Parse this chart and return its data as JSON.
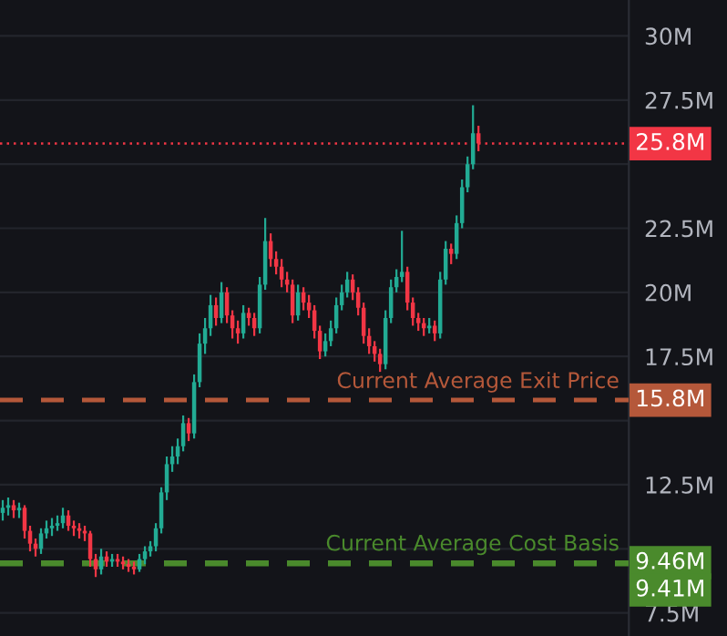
{
  "chart_data": {
    "type": "candlestick",
    "categories": [
      null,
      null,
      null,
      null,
      null,
      null,
      null,
      null,
      null,
      null,
      null,
      null,
      null,
      null,
      null,
      null,
      null,
      null,
      null,
      null,
      null,
      null,
      null,
      null,
      null,
      null,
      null,
      null,
      null,
      null,
      null,
      null,
      null,
      null,
      null,
      null,
      null,
      null,
      null,
      null,
      null,
      null,
      null,
      null,
      null,
      null,
      null,
      null,
      null,
      null,
      null,
      null,
      null,
      null,
      null,
      null,
      null,
      null,
      null,
      null,
      null,
      null,
      null,
      null,
      null,
      null,
      null,
      null,
      null,
      null,
      null,
      null,
      null,
      null,
      null,
      null,
      null,
      null,
      null,
      null,
      null,
      null,
      null,
      null,
      null,
      null,
      null,
      null,
      null,
      null,
      null,
      null,
      null,
      null,
      null,
      null,
      null,
      null,
      null,
      null,
      null,
      null,
      null,
      null,
      null,
      null,
      null,
      null,
      null,
      null,
      null,
      null,
      null,
      null,
      null
    ],
    "ohlc": [
      [
        11.4,
        11.9,
        11.1,
        11.6
      ],
      [
        11.6,
        12.0,
        11.3,
        11.7
      ],
      [
        11.7,
        11.9,
        11.2,
        11.5
      ],
      [
        11.5,
        11.8,
        11.2,
        11.6
      ],
      [
        11.6,
        11.7,
        10.4,
        10.7
      ],
      [
        10.7,
        10.9,
        9.9,
        10.2
      ],
      [
        10.2,
        10.4,
        9.7,
        10.0
      ],
      [
        10.0,
        10.8,
        9.8,
        10.6
      ],
      [
        10.6,
        11.1,
        10.4,
        10.8
      ],
      [
        10.8,
        11.2,
        10.5,
        10.9
      ],
      [
        10.9,
        11.3,
        10.7,
        11.0
      ],
      [
        11.0,
        11.6,
        10.8,
        11.3
      ],
      [
        11.3,
        11.5,
        10.7,
        10.9
      ],
      [
        10.9,
        11.1,
        10.5,
        10.8
      ],
      [
        10.8,
        11.0,
        10.4,
        10.7
      ],
      [
        10.7,
        10.9,
        10.3,
        10.6
      ],
      [
        10.6,
        10.7,
        9.3,
        9.6
      ],
      [
        9.6,
        9.8,
        8.9,
        9.2
      ],
      [
        9.2,
        10.0,
        9.0,
        9.7
      ],
      [
        9.7,
        9.9,
        9.3,
        9.5
      ],
      [
        9.5,
        9.8,
        9.3,
        9.6
      ],
      [
        9.6,
        9.8,
        9.3,
        9.5
      ],
      [
        9.5,
        9.7,
        9.2,
        9.4
      ],
      [
        9.4,
        9.6,
        9.1,
        9.3
      ],
      [
        9.3,
        9.5,
        9.0,
        9.2
      ],
      [
        9.2,
        9.8,
        9.1,
        9.6
      ],
      [
        9.6,
        10.1,
        9.4,
        9.9
      ],
      [
        9.9,
        10.3,
        9.7,
        10.1
      ],
      [
        10.1,
        11.0,
        9.9,
        10.8
      ],
      [
        10.8,
        12.4,
        10.6,
        12.2
      ],
      [
        12.2,
        13.6,
        11.9,
        13.3
      ],
      [
        13.3,
        14.0,
        13.0,
        13.6
      ],
      [
        13.6,
        14.3,
        13.3,
        14.0
      ],
      [
        14.0,
        15.2,
        13.8,
        14.9
      ],
      [
        14.9,
        15.1,
        14.2,
        14.5
      ],
      [
        14.5,
        16.8,
        14.3,
        16.5
      ],
      [
        16.5,
        18.4,
        16.3,
        18.0
      ],
      [
        18.0,
        19.0,
        17.6,
        18.6
      ],
      [
        18.6,
        19.9,
        18.3,
        19.5
      ],
      [
        19.5,
        19.8,
        18.7,
        19.0
      ],
      [
        19.0,
        20.4,
        18.8,
        20.0
      ],
      [
        20.0,
        20.2,
        18.8,
        19.1
      ],
      [
        19.1,
        19.3,
        18.2,
        18.6
      ],
      [
        18.6,
        18.9,
        18.0,
        18.4
      ],
      [
        18.4,
        19.5,
        18.2,
        19.2
      ],
      [
        19.2,
        19.4,
        18.7,
        19.0
      ],
      [
        19.0,
        19.2,
        18.3,
        18.6
      ],
      [
        18.6,
        20.6,
        18.4,
        20.3
      ],
      [
        20.3,
        22.9,
        20.1,
        22.0
      ],
      [
        22.0,
        22.3,
        21.0,
        21.3
      ],
      [
        21.3,
        21.6,
        20.7,
        21.0
      ],
      [
        21.0,
        21.3,
        20.2,
        20.5
      ],
      [
        20.5,
        20.8,
        20.0,
        20.3
      ],
      [
        20.3,
        20.5,
        18.8,
        19.1
      ],
      [
        19.1,
        20.3,
        18.9,
        20.0
      ],
      [
        20.0,
        20.2,
        19.3,
        19.6
      ],
      [
        19.6,
        19.9,
        19.0,
        19.3
      ],
      [
        19.3,
        19.5,
        18.2,
        18.5
      ],
      [
        18.5,
        18.7,
        17.4,
        17.7
      ],
      [
        17.7,
        18.4,
        17.5,
        18.1
      ],
      [
        18.1,
        18.9,
        17.9,
        18.6
      ],
      [
        18.6,
        19.8,
        18.4,
        19.5
      ],
      [
        19.5,
        20.3,
        19.3,
        20.0
      ],
      [
        20.0,
        20.8,
        19.8,
        20.5
      ],
      [
        20.5,
        20.7,
        19.7,
        20.0
      ],
      [
        20.0,
        20.2,
        19.1,
        19.4
      ],
      [
        19.4,
        19.6,
        18.0,
        18.3
      ],
      [
        18.3,
        18.6,
        17.6,
        17.9
      ],
      [
        17.9,
        18.1,
        17.3,
        17.6
      ],
      [
        17.6,
        17.8,
        16.9,
        17.2
      ],
      [
        17.2,
        19.3,
        17.0,
        19.0
      ],
      [
        19.0,
        20.5,
        18.8,
        20.2
      ],
      [
        20.2,
        20.9,
        20.0,
        20.6
      ],
      [
        20.6,
        22.4,
        20.4,
        20.8
      ],
      [
        20.8,
        21.0,
        19.3,
        19.6
      ],
      [
        19.6,
        19.8,
        18.7,
        19.0
      ],
      [
        19.0,
        19.2,
        18.5,
        18.8
      ],
      [
        18.8,
        19.0,
        18.3,
        18.6
      ],
      [
        18.6,
        19.0,
        18.4,
        18.7
      ],
      [
        18.7,
        18.9,
        18.1,
        18.4
      ],
      [
        18.4,
        20.8,
        18.2,
        20.5
      ],
      [
        20.5,
        22.0,
        20.3,
        21.7
      ],
      [
        21.7,
        21.9,
        21.1,
        21.5
      ],
      [
        21.5,
        23.0,
        21.3,
        22.7
      ],
      [
        22.7,
        24.4,
        22.5,
        24.1
      ],
      [
        24.1,
        25.3,
        23.9,
        25.0
      ],
      [
        25.0,
        27.3,
        24.8,
        26.2
      ],
      [
        26.2,
        26.5,
        25.5,
        25.8
      ],
      null,
      null,
      null,
      null,
      null,
      null,
      null,
      null,
      null,
      null,
      null,
      null,
      null,
      null,
      null,
      null,
      null,
      null,
      null,
      null,
      null,
      null,
      null,
      null,
      null,
      null,
      null
    ],
    "colors": [
      "#22ab94",
      "#22ab94",
      "#f23645",
      "#22ab94",
      "#f23645",
      "#f23645",
      "#f23645",
      "#22ab94",
      "#22ab94",
      "#22ab94",
      "#22ab94",
      "#22ab94",
      "#f23645",
      "#f23645",
      "#f23645",
      "#f23645",
      "#f23645",
      "#f23645",
      "#22ab94",
      "#f23645",
      "#22ab94",
      "#f23645",
      "#f23645",
      "#f23645",
      "#f23645",
      "#22ab94",
      "#22ab94",
      "#22ab94",
      "#22ab94",
      "#22ab94",
      "#22ab94",
      "#22ab94",
      "#22ab94",
      "#22ab94",
      "#f23645",
      "#22ab94",
      "#22ab94",
      "#22ab94",
      "#22ab94",
      "#f23645",
      "#22ab94",
      "#f23645",
      "#f23645",
      "#f23645",
      "#22ab94",
      "#f23645",
      "#f23645",
      "#22ab94",
      "#22ab94",
      "#f23645",
      "#f23645",
      "#f23645",
      "#f23645",
      "#f23645",
      "#22ab94",
      "#f23645",
      "#f23645",
      "#f23645",
      "#f23645",
      "#22ab94",
      "#22ab94",
      "#22ab94",
      "#22ab94",
      "#22ab94",
      "#f23645",
      "#f23645",
      "#f23645",
      "#f23645",
      "#f23645",
      "#f23645",
      "#22ab94",
      "#22ab94",
      "#22ab94",
      "#22ab94",
      "#f23645",
      "#f23645",
      "#f23645",
      "#f23645",
      "#22ab94",
      "#f23645",
      "#22ab94",
      "#22ab94",
      "#f23645",
      "#22ab94",
      "#22ab94",
      "#22ab94",
      "#22ab94",
      "#f23645",
      null,
      null,
      null,
      null,
      null,
      null,
      null,
      null,
      null,
      null,
      null,
      null,
      null,
      null,
      null,
      null,
      null,
      null,
      null,
      null,
      null,
      null,
      null,
      null,
      null,
      null,
      null
    ],
    "ylim": [
      6.6,
      31.4
    ],
    "yticks": [
      {
        "value": 7.5,
        "label": "7.5M"
      },
      {
        "value": 10,
        "label": null
      },
      {
        "value": 12.5,
        "label": "12.5M"
      },
      {
        "value": 15,
        "label": null
      },
      {
        "value": 17.5,
        "label": "17.5M"
      },
      {
        "value": 20,
        "label": "20M"
      },
      {
        "value": 22.5,
        "label": "22.5M"
      },
      {
        "value": 25,
        "label": null
      },
      {
        "value": 27.5,
        "label": "27.5M"
      },
      {
        "value": 30,
        "label": "30M"
      }
    ],
    "grid": "y",
    "ref_lines": [
      {
        "axis": "y",
        "value": 25.8,
        "label": "25.8M",
        "color": "#f23645",
        "line_style": "dotted"
      },
      {
        "axis": "y",
        "value": 15.8,
        "label": "15.8M",
        "color": "#b5583a",
        "line_style": "dashed"
      },
      {
        "axis": "y",
        "value": 9.46,
        "label": "9.46M",
        "color": "#4a8a2c",
        "line_style": "dashed"
      },
      {
        "axis": "y",
        "value": 9.41,
        "label": "9.41M",
        "color": "#4a8a2c",
        "line_style": "dashed"
      }
    ],
    "annotations": [
      {
        "text": "Current Average Exit Price",
        "y": 15.8
      },
      {
        "text": "Current Average Cost Basis",
        "y": 9.46
      }
    ]
  }
}
